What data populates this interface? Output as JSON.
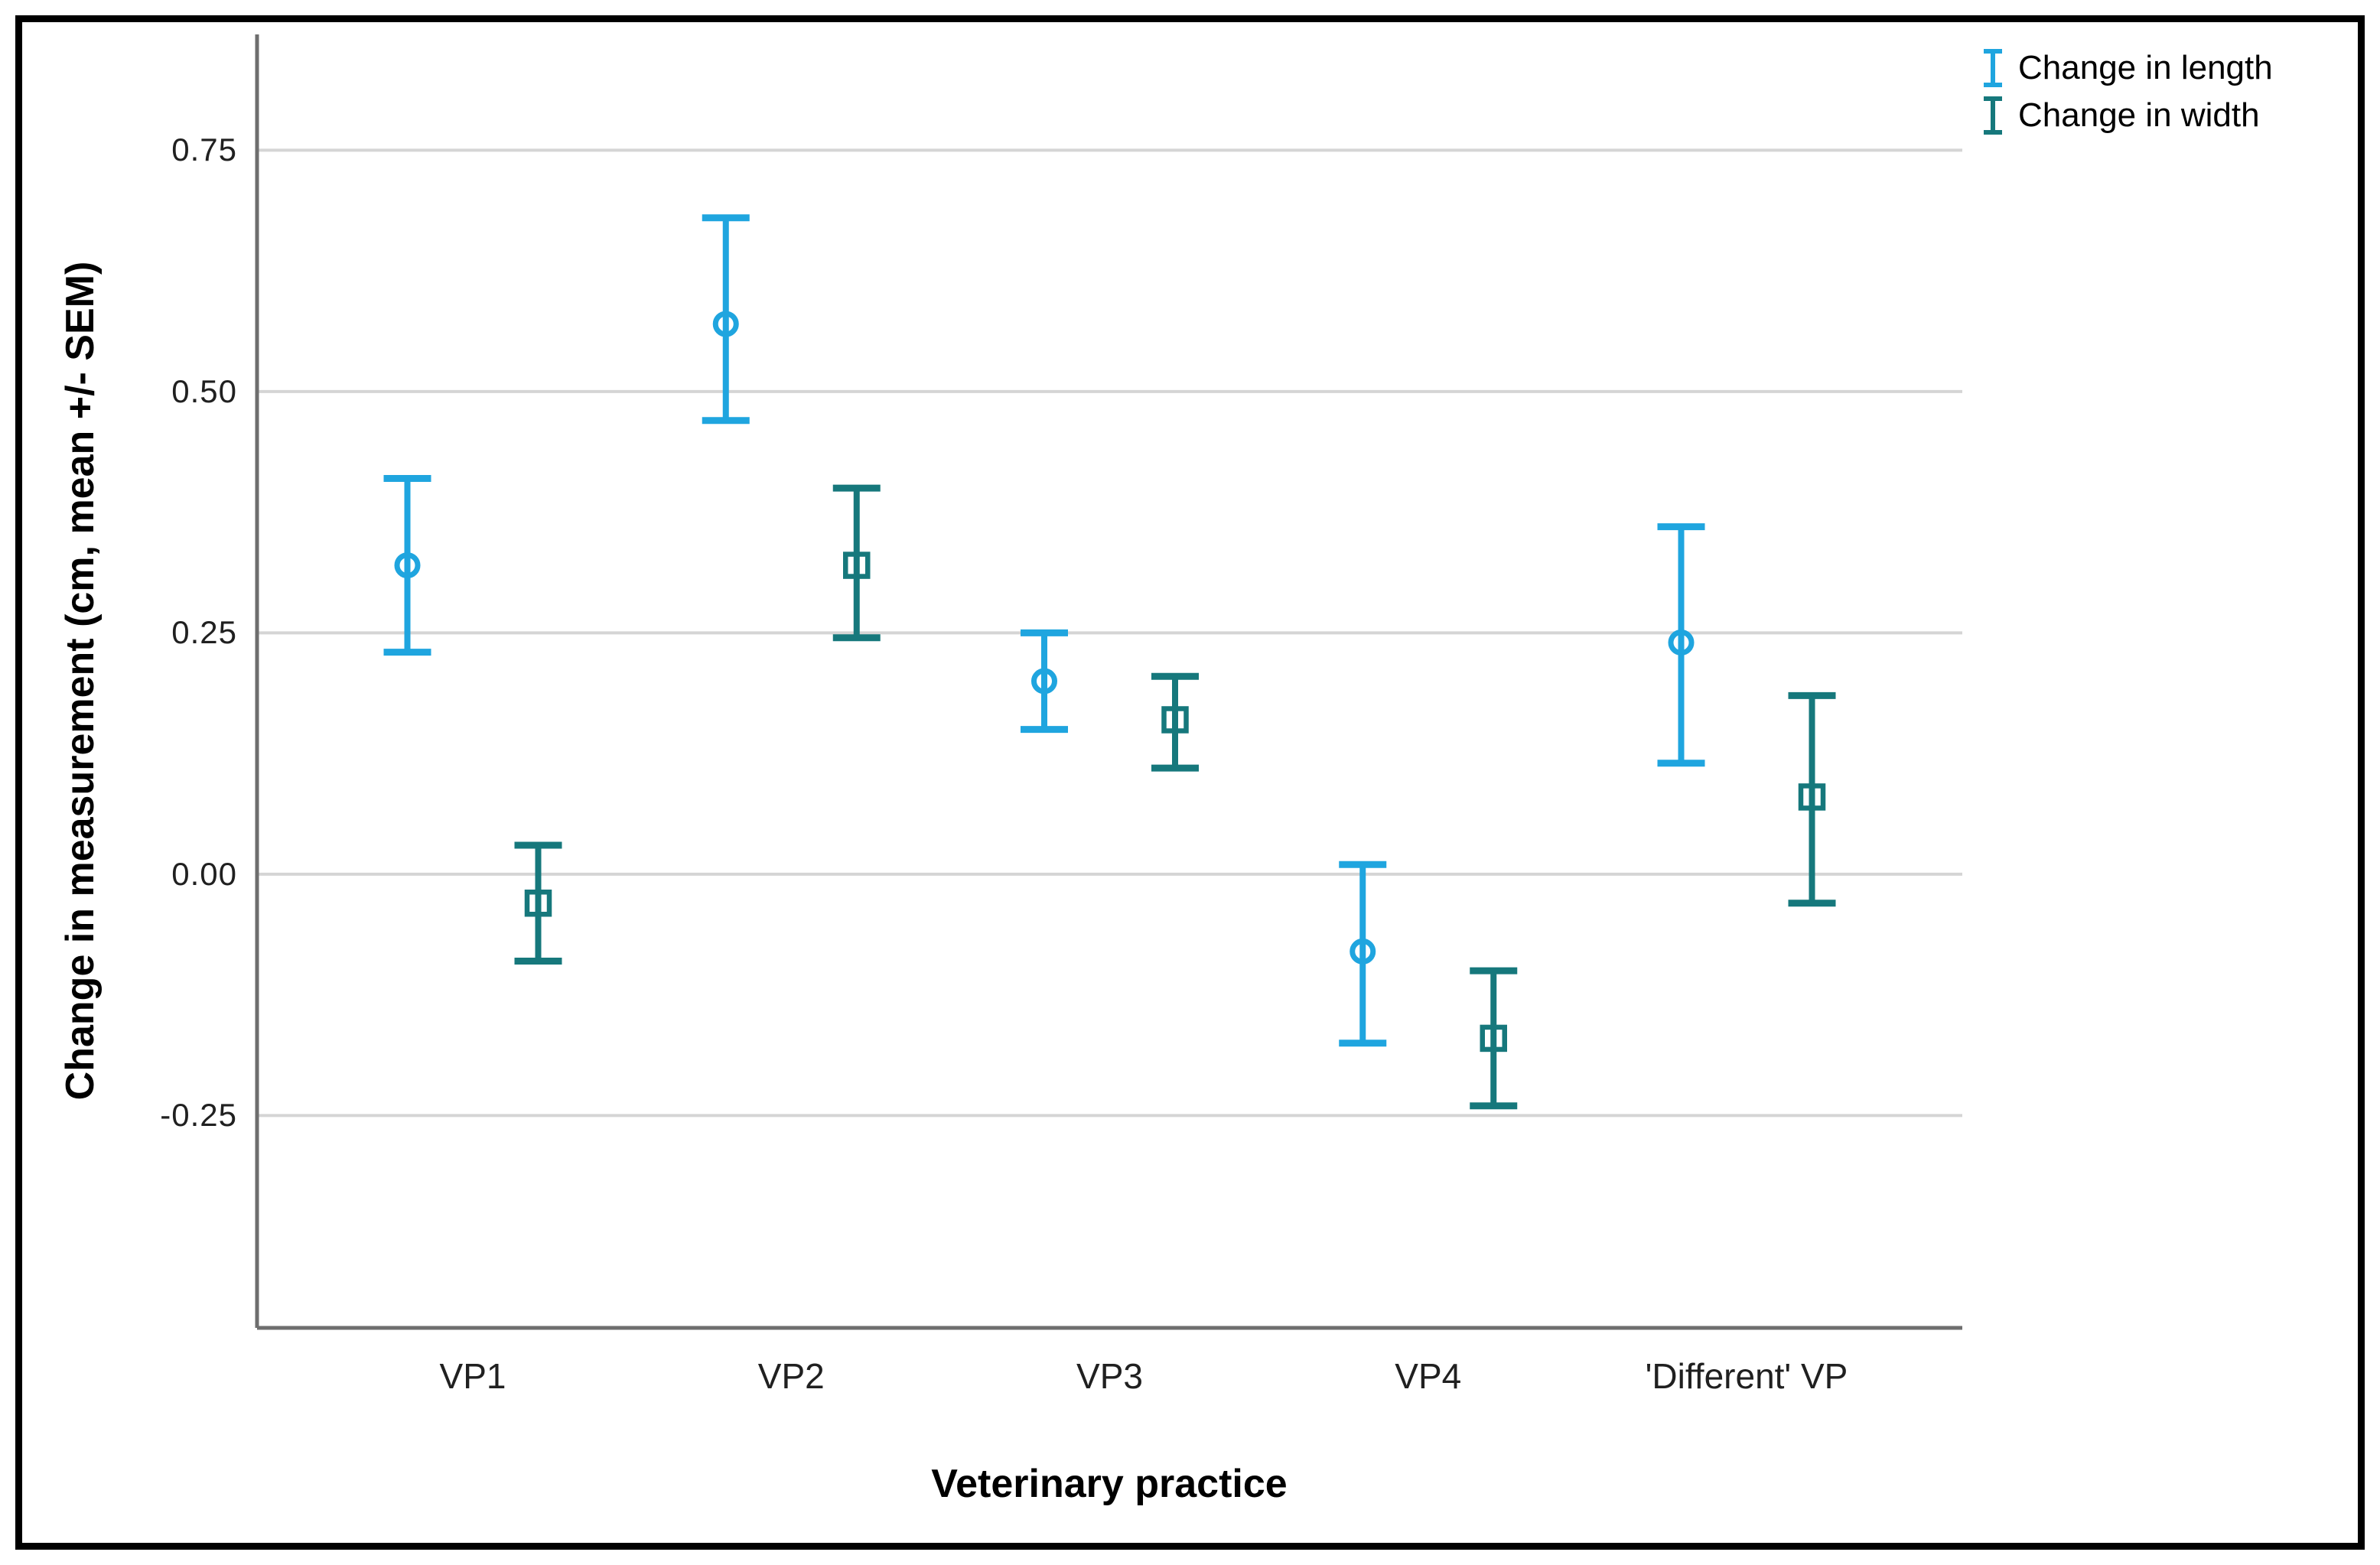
{
  "figure": {
    "background": "#ffffff",
    "border_color": "#000000",
    "axis_line_color": "#6e6e6e",
    "gridline_color": "#d5d5d5"
  },
  "chart_data": {
    "type": "errorbar",
    "title": "",
    "xlabel": "Veterinary practice",
    "ylabel": "Change in measurement (cm, mean +/- SEM)",
    "categories": [
      "VP1",
      "VP2",
      "VP3",
      "VP4",
      "'Different' VP"
    ],
    "y_ticks": [
      "0.75",
      "0.50",
      "0.25",
      "0.00",
      "-0.25"
    ],
    "ylim": [
      -0.47,
      0.87
    ],
    "grid": "horizontal",
    "legend_position": "top-right",
    "series": [
      {
        "name": "Change in length",
        "color": "#1fa5df",
        "marker": "circle",
        "means": [
          0.32,
          0.57,
          0.2,
          -0.08,
          0.24
        ],
        "lower": [
          0.23,
          0.47,
          0.15,
          -0.175,
          0.115
        ],
        "upper": [
          0.41,
          0.68,
          0.25,
          0.01,
          0.36
        ]
      },
      {
        "name": "Change in width",
        "color": "#16787c",
        "marker": "square",
        "means": [
          -0.03,
          0.32,
          0.16,
          -0.17,
          0.08
        ],
        "lower": [
          -0.09,
          0.245,
          0.11,
          -0.24,
          -0.03
        ],
        "upper": [
          0.03,
          0.4,
          0.205,
          -0.1,
          0.185
        ]
      }
    ]
  }
}
